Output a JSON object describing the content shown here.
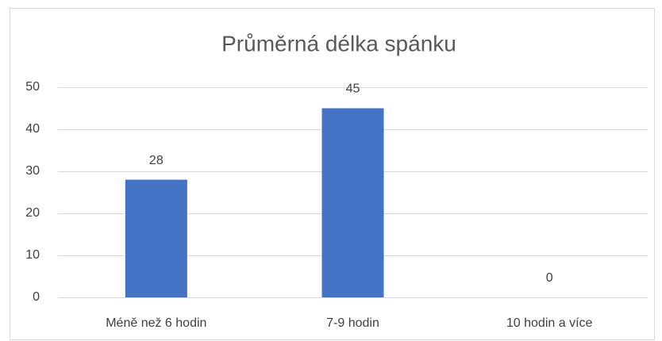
{
  "chart_data": {
    "type": "bar",
    "title": "Průměrná délka spánku",
    "categories": [
      "Méně než 6 hodin",
      "7-9 hodin",
      "10 hodin a více"
    ],
    "values": [
      28,
      45,
      0
    ],
    "color": "#4472c4",
    "ylim": [
      0,
      50
    ],
    "yticks": [
      0,
      10,
      20,
      30,
      40,
      50
    ],
    "grid": true
  }
}
